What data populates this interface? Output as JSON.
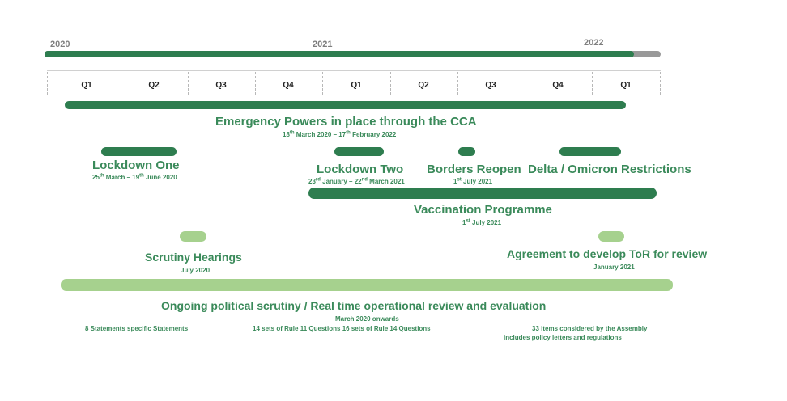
{
  "years": {
    "y2020": "2020",
    "y2021": "2021",
    "y2022": "2022"
  },
  "timeline_progress": 0.957,
  "quarters": [
    "Q1",
    "Q2",
    "Q3",
    "Q4",
    "Q1",
    "Q2",
    "Q3",
    "Q4",
    "Q1"
  ],
  "emergency": {
    "title": "Emergency Powers in place through the CCA",
    "d1": "18",
    "s1": "th",
    "d2": " March 2020 – 17",
    "s2": "th",
    "d3": " February 2022"
  },
  "lockdown_one": {
    "title": "Lockdown One",
    "d1": "25",
    "s1": "th",
    "d2": " March – 19",
    "s2": "th",
    "d3": " June 2020"
  },
  "lockdown_two": {
    "title": "Lockdown Two",
    "d1": "23",
    "s1": "rd",
    "d2": " January – 22",
    "s2": "nd",
    "d3": " March 2021"
  },
  "borders": {
    "title": "Borders Reopen",
    "d1": "1",
    "s1": "st",
    "d2": " July 2021"
  },
  "delta": {
    "title": "Delta / Omicron Restrictions"
  },
  "vaccination": {
    "title": "Vaccination Programme",
    "d1": "1",
    "s1": "st",
    "d2": " July 2021"
  },
  "scrutiny": {
    "title": "Scrutiny Hearings",
    "date": "July 2020"
  },
  "agreement": {
    "title": "Agreement to develop ToR for review",
    "date": "January 2021"
  },
  "ongoing": {
    "title": "Ongoing political scrutiny / Real time operational review and evaluation",
    "date": "March 2020 onwards",
    "note_statements": "8 Statements specific Statements",
    "note_questions": "14 sets of Rule 11 Questions 16 sets of Rule 14 Questions",
    "note_items_line1": "33 items considered by the Assembly",
    "note_items_line2": "includes policy letters and regulations"
  }
}
